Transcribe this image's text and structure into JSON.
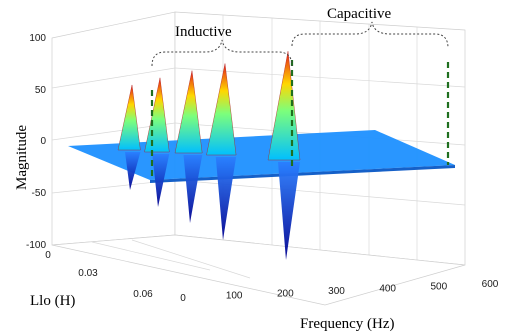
{
  "chart_data": {
    "type": "surface",
    "title": "",
    "zlabel": "Magnitude",
    "xlabel": "Frequency (Hz)",
    "ylabel": "Llo (H)",
    "z_ticks": [
      "100",
      "50",
      "0",
      "-50",
      "-100"
    ],
    "x_ticks": [
      "0",
      "100",
      "200",
      "300",
      "400",
      "500",
      "600"
    ],
    "y_ticks": [
      "0",
      "0.03",
      "0.06"
    ],
    "zlim": [
      -100,
      100
    ],
    "xlim": [
      0,
      600
    ],
    "ylim": [
      0,
      0.06
    ],
    "grid": true,
    "colormap": "jet",
    "resonance_peaks": [
      {
        "llo": 0.06,
        "freq": 60,
        "magnitude": 35
      },
      {
        "llo": 0.045,
        "freq": 150,
        "magnitude": 40
      },
      {
        "llo": 0.03,
        "freq": 240,
        "magnitude": 45
      },
      {
        "llo": 0.015,
        "freq": 330,
        "magnitude": 50
      },
      {
        "llo": 0.0,
        "freq": 420,
        "magnitude": 60
      }
    ],
    "annotations": [
      {
        "text": "Inductive"
      },
      {
        "text": "Capacitive"
      }
    ],
    "colors": {
      "base_surface": "#1e90ff",
      "peak_low": "#00bfff",
      "peak_mid": "#ffd700",
      "peak_high": "#e41a1a",
      "negative": "#0000a0",
      "marker_line": "#1f6f1f"
    }
  }
}
